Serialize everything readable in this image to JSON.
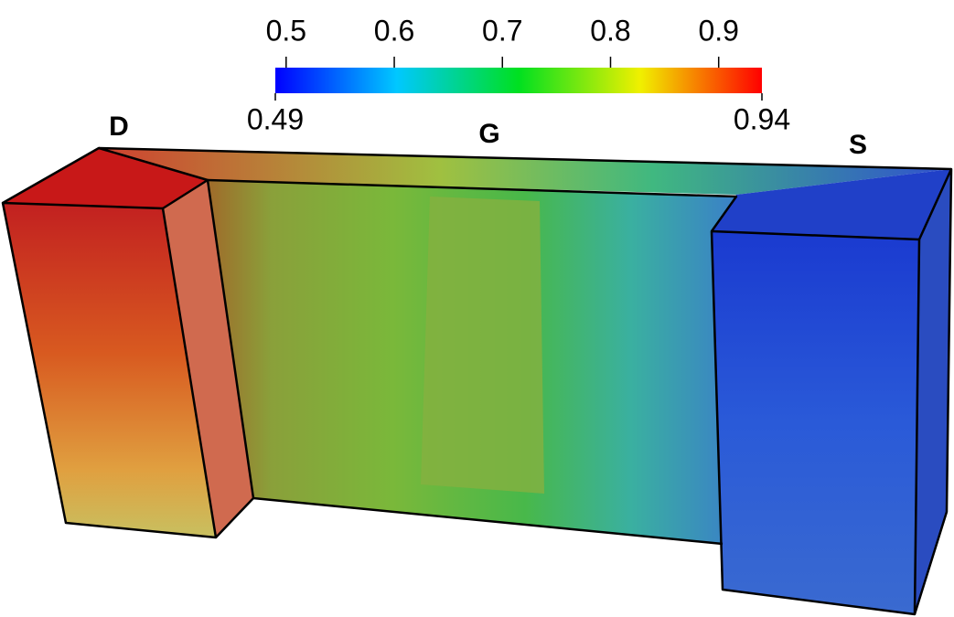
{
  "colorbar": {
    "range": [
      0.49,
      0.94
    ],
    "ticks": [
      0.5,
      0.6,
      0.7,
      0.8,
      0.9
    ]
  },
  "regions": [
    "D",
    "G",
    "S"
  ]
}
